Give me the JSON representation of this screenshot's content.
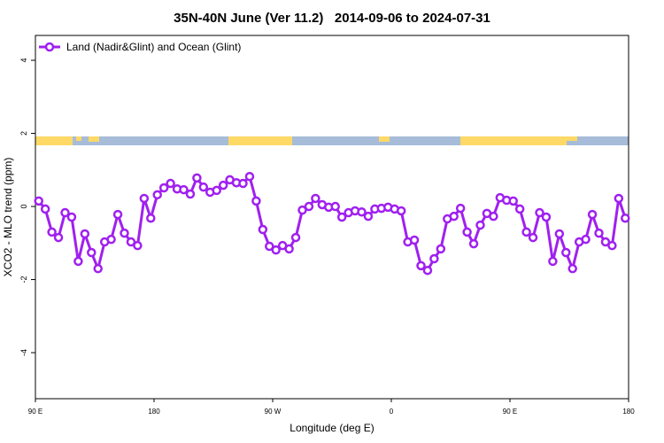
{
  "chart_data": {
    "type": "line",
    "title": "35N-40N June (Ver 11.2)   2014-09-06 to 2024-07-31",
    "xlabel": "Longitude (deg E)",
    "ylabel": "XCO2 - MLO trend (ppm)",
    "xlim": [
      90,
      540
    ],
    "xticks": [
      {
        "value": 90,
        "label": "90 E"
      },
      {
        "value": 180,
        "label": "180"
      },
      {
        "value": 270,
        "label": "90 W"
      },
      {
        "value": 360,
        "label": "0"
      },
      {
        "value": 450,
        "label": "90 E"
      },
      {
        "value": 540,
        "label": "180"
      }
    ],
    "ylim": [
      -5.26,
      4.68
    ],
    "yticks": [
      4,
      2,
      0,
      -2,
      -4
    ],
    "legend": "top-left",
    "x": [
      92.5,
      97.5,
      102.5,
      107.5,
      112.5,
      117.5,
      122.5,
      127.5,
      132.5,
      137.5,
      142.5,
      147.5,
      152.5,
      157.5,
      162.5,
      167.5,
      172.5,
      177.5,
      182.5,
      187.5,
      192.5,
      197.5,
      202.5,
      207.5,
      212.5,
      217.5,
      222.5,
      227.5,
      232.5,
      237.5,
      242.5,
      247.5,
      252.5,
      257.5,
      262.5,
      267.5,
      272.5,
      277.5,
      282.5,
      287.5,
      292.5,
      297.5,
      302.5,
      307.5,
      312.5,
      317.5,
      322.5,
      327.5,
      332.5,
      337.5,
      342.5,
      347.5,
      352.5,
      357.5,
      362.5,
      367.5,
      372.5,
      377.5,
      382.5,
      387.5,
      392.5,
      397.5,
      402.5,
      407.5,
      412.5,
      417.5,
      422.5,
      427.5,
      432.5,
      437.5,
      442.5,
      447.5,
      452.5,
      457.5,
      462.5,
      467.5,
      472.5,
      477.5,
      482.5,
      487.5,
      492.5,
      497.5,
      502.5,
      507.5,
      512.5,
      517.5,
      522.5,
      527.5,
      532.5,
      537.5
    ],
    "series": [
      {
        "name": "Land (Nadir&Glint) and Ocean (Glint)",
        "color": "#a020f0",
        "values": [
          0.15,
          -0.07,
          -0.7,
          -0.85,
          -0.17,
          -0.29,
          -1.5,
          -0.75,
          -1.26,
          -1.7,
          -0.97,
          -0.9,
          -0.22,
          -0.73,
          -0.97,
          -1.07,
          0.22,
          -0.32,
          0.32,
          0.51,
          0.63,
          0.48,
          0.46,
          0.34,
          0.78,
          0.53,
          0.39,
          0.44,
          0.58,
          0.73,
          0.65,
          0.63,
          0.82,
          0.15,
          -0.63,
          -1.09,
          -1.19,
          -1.07,
          -1.16,
          -0.85,
          -0.1,
          0,
          0.22,
          0.05,
          -0.02,
          0,
          -0.29,
          -0.17,
          -0.12,
          -0.15,
          -0.27,
          -0.07,
          -0.05,
          -0.02,
          -0.07,
          -0.12,
          -0.97,
          -0.92,
          -1.62,
          -1.75,
          -1.43,
          -1.16,
          -0.34,
          -0.27,
          -0.05,
          -0.7,
          -1.02,
          -0.51,
          -0.19,
          -0.27,
          0.24,
          0.17,
          0.15,
          -0.07,
          -0.7,
          -0.85,
          -0.17,
          -0.29,
          -1.5,
          -0.75,
          -1.26,
          -1.7,
          -0.97,
          -0.9,
          -0.22,
          -0.73,
          -0.97,
          -1.07,
          0.22,
          -0.32
        ]
      }
    ]
  }
}
